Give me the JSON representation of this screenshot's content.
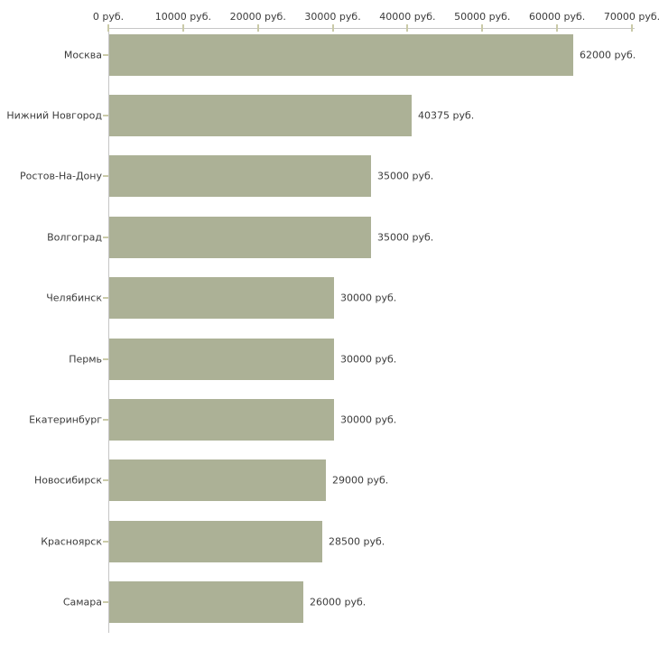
{
  "chart_data": {
    "type": "bar",
    "orientation": "horizontal",
    "categories": [
      "Москва",
      "Нижний Новгород",
      "Ростов-На-Дону",
      "Волгоград",
      "Челябинск",
      "Пермь",
      "Екатеринбург",
      "Новосибирск",
      "Красноярск",
      "Самара"
    ],
    "values": [
      62000,
      40375,
      35000,
      35000,
      30000,
      30000,
      30000,
      29000,
      28500,
      26000
    ],
    "value_labels": [
      "62000 руб.",
      "40375 руб.",
      "35000 руб.",
      "35000 руб.",
      "30000 руб.",
      "30000 руб.",
      "30000 руб.",
      "29000 руб.",
      "28500 руб.",
      "26000 руб."
    ],
    "x_axis": {
      "position": "top",
      "min": 0,
      "max": 70000,
      "tick_values": [
        0,
        10000,
        20000,
        30000,
        40000,
        50000,
        60000,
        70000
      ],
      "tick_labels": [
        "0 руб.",
        "10000 руб.",
        "20000 руб.",
        "30000 руб.",
        "40000 руб.",
        "50000 руб.",
        "60000 руб.",
        "70000 руб."
      ]
    },
    "grid": false,
    "legend": null,
    "title": ""
  },
  "colors": {
    "bar": "#acb196",
    "axis_line": "#c6c6c6",
    "tick_mark": "#cacaa8",
    "text": "#3b3b3b",
    "background": "#ffffff"
  }
}
